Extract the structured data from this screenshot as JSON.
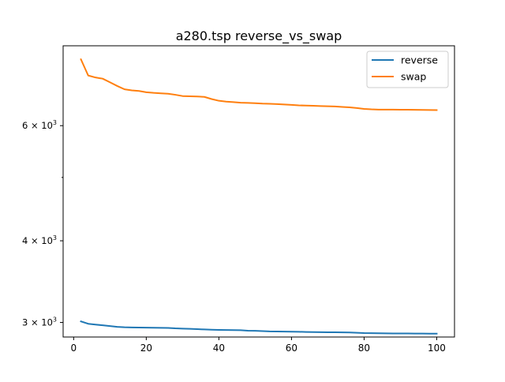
{
  "chart_data": {
    "type": "line",
    "title": "a280.tsp  reverse_vs_swap",
    "xlabel": "",
    "ylabel": "",
    "xlim": [
      -2.9,
      104.9
    ],
    "ylim": [
      2850,
      7950
    ],
    "yscale": "log",
    "grid": false,
    "legend_position": "top-right",
    "x_ticks": [
      0,
      20,
      40,
      60,
      80,
      100
    ],
    "x_tick_labels": [
      "0",
      "20",
      "40",
      "60",
      "80",
      "100"
    ],
    "y_major_ticks": [
      3000,
      4000,
      6000
    ],
    "y_tick_labels": [
      {
        "base": "3",
        "sup": "3"
      },
      {
        "base": "4",
        "sup": "3"
      },
      {
        "base": "6",
        "sup": "3"
      }
    ],
    "y_minor_ticks": [
      5000
    ],
    "series": [
      {
        "name": "reverse",
        "color": "#1f77b4",
        "x": [
          2,
          4,
          6,
          8,
          10,
          12,
          14,
          16,
          18,
          20,
          22,
          24,
          26,
          28,
          30,
          32,
          34,
          36,
          38,
          40,
          42,
          44,
          46,
          48,
          50,
          52,
          54,
          56,
          58,
          60,
          62,
          64,
          66,
          68,
          70,
          72,
          74,
          76,
          78,
          80,
          82,
          84,
          86,
          88,
          90,
          92,
          94,
          96,
          98,
          100
        ],
        "values": [
          3011,
          2986,
          2978,
          2970,
          2962,
          2954,
          2950,
          2948,
          2947,
          2946,
          2945,
          2944,
          2943,
          2938,
          2935,
          2933,
          2930,
          2927,
          2924,
          2922,
          2921,
          2920,
          2919,
          2914,
          2913,
          2910,
          2907,
          2906,
          2905,
          2904,
          2903,
          2901,
          2900,
          2899,
          2898,
          2898,
          2897,
          2896,
          2893,
          2890,
          2889,
          2888,
          2887,
          2886,
          2886,
          2886,
          2885,
          2885,
          2884,
          2884
        ]
      },
      {
        "name": "swap",
        "color": "#ff7f0e",
        "x": [
          2,
          4,
          6,
          8,
          10,
          12,
          14,
          16,
          18,
          20,
          22,
          24,
          26,
          28,
          30,
          32,
          34,
          36,
          38,
          40,
          42,
          44,
          46,
          48,
          50,
          52,
          54,
          56,
          58,
          60,
          62,
          64,
          66,
          68,
          70,
          72,
          74,
          76,
          78,
          80,
          82,
          84,
          86,
          88,
          90,
          92,
          94,
          96,
          98,
          100
        ],
        "values": [
          7580,
          7160,
          7110,
          7080,
          6990,
          6900,
          6820,
          6795,
          6780,
          6750,
          6735,
          6725,
          6715,
          6690,
          6660,
          6655,
          6650,
          6640,
          6590,
          6550,
          6530,
          6520,
          6505,
          6500,
          6495,
          6485,
          6480,
          6475,
          6465,
          6455,
          6445,
          6440,
          6435,
          6430,
          6425,
          6420,
          6410,
          6400,
          6385,
          6365,
          6355,
          6350,
          6350,
          6350,
          6348,
          6346,
          6344,
          6342,
          6340,
          6338
        ]
      }
    ]
  }
}
